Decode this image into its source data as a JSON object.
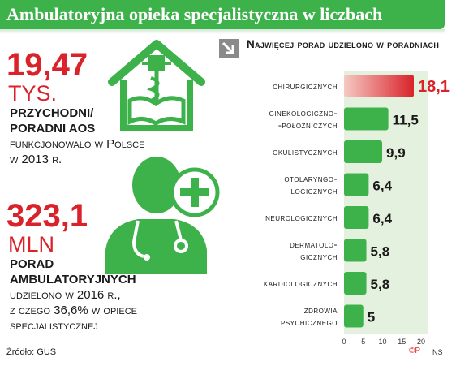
{
  "header": {
    "title": "Ambulatoryjna opieka specjalistyczna w liczbach"
  },
  "stat1": {
    "value": "19,47",
    "unit": "TYS.",
    "line1": "PRZYCHODNI/",
    "line2": "PORADNI AOS",
    "line3": "funkcjonowało w Polsce",
    "line4": "w 2013 r."
  },
  "stat2": {
    "value": "323,1",
    "unit": "MLN",
    "line1": "PORAD",
    "line2": "AMBULATORYJNYCH",
    "line3": "udzielono w 2016 r.,",
    "line4": "z czego 36,6% w opiece",
    "line5": "specjalistycznej"
  },
  "source": "Źródło: GUS",
  "credits": {
    "logo": "©P",
    "author": "NS"
  },
  "icons": [
    "medical-house-icon",
    "doctor-icon",
    "plus-icon",
    "arrow-icon"
  ],
  "colors": {
    "green": "#3db24b",
    "red": "#d9222a",
    "light_green": "#e5f1df"
  },
  "chart_data": {
    "type": "bar",
    "orientation": "horizontal",
    "title": "Najwięcej porad udzielono w poradniach",
    "categories": [
      [
        "chirurgicznych"
      ],
      [
        "ginekologiczno-",
        "-położniczych"
      ],
      [
        "okulistycznych"
      ],
      [
        "otolaryngo-",
        "logicznych"
      ],
      [
        "neurologicznych"
      ],
      [
        "dermatolo-",
        "gicznych"
      ],
      [
        "kardiologicznych"
      ],
      [
        "zdrowia",
        "psychicznego"
      ]
    ],
    "values": [
      18.1,
      11.5,
      9.9,
      6.4,
      6.4,
      5.8,
      5.8,
      5
    ],
    "value_labels": [
      "18,1",
      "11,5",
      "9,9",
      "6,4",
      "6,4",
      "5,8",
      "5,8",
      "5"
    ],
    "xlim": [
      0,
      20
    ],
    "xticks": [
      "0",
      "5",
      "10",
      "15",
      "20"
    ],
    "highlight_color": "#d9222a",
    "bar_color": "#3db24b"
  }
}
